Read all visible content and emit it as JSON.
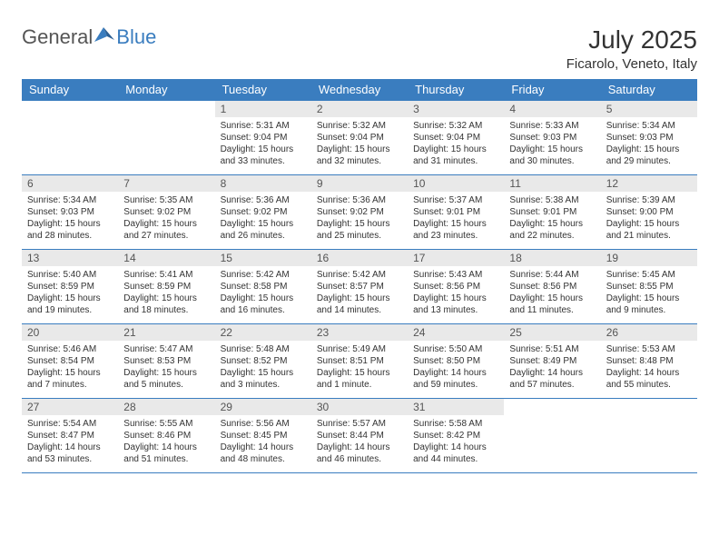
{
  "logo": {
    "general": "General",
    "blue": "Blue"
  },
  "month_title": "July 2025",
  "location": "Ficarolo, Veneto, Italy",
  "colors": {
    "header_bg": "#3a7dbf",
    "header_text": "#ffffff",
    "daynum_bg": "#e9e9e9",
    "border": "#3a7dbf",
    "body_text": "#333333",
    "logo_gray": "#555555",
    "logo_blue": "#3a7dbf",
    "background": "#ffffff"
  },
  "typography": {
    "month_title_fontsize": 28,
    "location_fontsize": 15,
    "header_fontsize": 13,
    "daynum_fontsize": 12,
    "body_fontsize": 10
  },
  "day_headers": [
    "Sunday",
    "Monday",
    "Tuesday",
    "Wednesday",
    "Thursday",
    "Friday",
    "Saturday"
  ],
  "weeks": [
    [
      {
        "num": "",
        "body": ""
      },
      {
        "num": "",
        "body": ""
      },
      {
        "num": "1",
        "sunrise": "5:31 AM",
        "sunset": "9:04 PM",
        "daylight": "15 hours and 33 minutes."
      },
      {
        "num": "2",
        "sunrise": "5:32 AM",
        "sunset": "9:04 PM",
        "daylight": "15 hours and 32 minutes."
      },
      {
        "num": "3",
        "sunrise": "5:32 AM",
        "sunset": "9:04 PM",
        "daylight": "15 hours and 31 minutes."
      },
      {
        "num": "4",
        "sunrise": "5:33 AM",
        "sunset": "9:03 PM",
        "daylight": "15 hours and 30 minutes."
      },
      {
        "num": "5",
        "sunrise": "5:34 AM",
        "sunset": "9:03 PM",
        "daylight": "15 hours and 29 minutes."
      }
    ],
    [
      {
        "num": "6",
        "sunrise": "5:34 AM",
        "sunset": "9:03 PM",
        "daylight": "15 hours and 28 minutes."
      },
      {
        "num": "7",
        "sunrise": "5:35 AM",
        "sunset": "9:02 PM",
        "daylight": "15 hours and 27 minutes."
      },
      {
        "num": "8",
        "sunrise": "5:36 AM",
        "sunset": "9:02 PM",
        "daylight": "15 hours and 26 minutes."
      },
      {
        "num": "9",
        "sunrise": "5:36 AM",
        "sunset": "9:02 PM",
        "daylight": "15 hours and 25 minutes."
      },
      {
        "num": "10",
        "sunrise": "5:37 AM",
        "sunset": "9:01 PM",
        "daylight": "15 hours and 23 minutes."
      },
      {
        "num": "11",
        "sunrise": "5:38 AM",
        "sunset": "9:01 PM",
        "daylight": "15 hours and 22 minutes."
      },
      {
        "num": "12",
        "sunrise": "5:39 AM",
        "sunset": "9:00 PM",
        "daylight": "15 hours and 21 minutes."
      }
    ],
    [
      {
        "num": "13",
        "sunrise": "5:40 AM",
        "sunset": "8:59 PM",
        "daylight": "15 hours and 19 minutes."
      },
      {
        "num": "14",
        "sunrise": "5:41 AM",
        "sunset": "8:59 PM",
        "daylight": "15 hours and 18 minutes."
      },
      {
        "num": "15",
        "sunrise": "5:42 AM",
        "sunset": "8:58 PM",
        "daylight": "15 hours and 16 minutes."
      },
      {
        "num": "16",
        "sunrise": "5:42 AM",
        "sunset": "8:57 PM",
        "daylight": "15 hours and 14 minutes."
      },
      {
        "num": "17",
        "sunrise": "5:43 AM",
        "sunset": "8:56 PM",
        "daylight": "15 hours and 13 minutes."
      },
      {
        "num": "18",
        "sunrise": "5:44 AM",
        "sunset": "8:56 PM",
        "daylight": "15 hours and 11 minutes."
      },
      {
        "num": "19",
        "sunrise": "5:45 AM",
        "sunset": "8:55 PM",
        "daylight": "15 hours and 9 minutes."
      }
    ],
    [
      {
        "num": "20",
        "sunrise": "5:46 AM",
        "sunset": "8:54 PM",
        "daylight": "15 hours and 7 minutes."
      },
      {
        "num": "21",
        "sunrise": "5:47 AM",
        "sunset": "8:53 PM",
        "daylight": "15 hours and 5 minutes."
      },
      {
        "num": "22",
        "sunrise": "5:48 AM",
        "sunset": "8:52 PM",
        "daylight": "15 hours and 3 minutes."
      },
      {
        "num": "23",
        "sunrise": "5:49 AM",
        "sunset": "8:51 PM",
        "daylight": "15 hours and 1 minute."
      },
      {
        "num": "24",
        "sunrise": "5:50 AM",
        "sunset": "8:50 PM",
        "daylight": "14 hours and 59 minutes."
      },
      {
        "num": "25",
        "sunrise": "5:51 AM",
        "sunset": "8:49 PM",
        "daylight": "14 hours and 57 minutes."
      },
      {
        "num": "26",
        "sunrise": "5:53 AM",
        "sunset": "8:48 PM",
        "daylight": "14 hours and 55 minutes."
      }
    ],
    [
      {
        "num": "27",
        "sunrise": "5:54 AM",
        "sunset": "8:47 PM",
        "daylight": "14 hours and 53 minutes."
      },
      {
        "num": "28",
        "sunrise": "5:55 AM",
        "sunset": "8:46 PM",
        "daylight": "14 hours and 51 minutes."
      },
      {
        "num": "29",
        "sunrise": "5:56 AM",
        "sunset": "8:45 PM",
        "daylight": "14 hours and 48 minutes."
      },
      {
        "num": "30",
        "sunrise": "5:57 AM",
        "sunset": "8:44 PM",
        "daylight": "14 hours and 46 minutes."
      },
      {
        "num": "31",
        "sunrise": "5:58 AM",
        "sunset": "8:42 PM",
        "daylight": "14 hours and 44 minutes."
      },
      {
        "num": "",
        "body": ""
      },
      {
        "num": "",
        "body": ""
      }
    ]
  ],
  "labels": {
    "sunrise": "Sunrise:",
    "sunset": "Sunset:",
    "daylight": "Daylight:"
  }
}
